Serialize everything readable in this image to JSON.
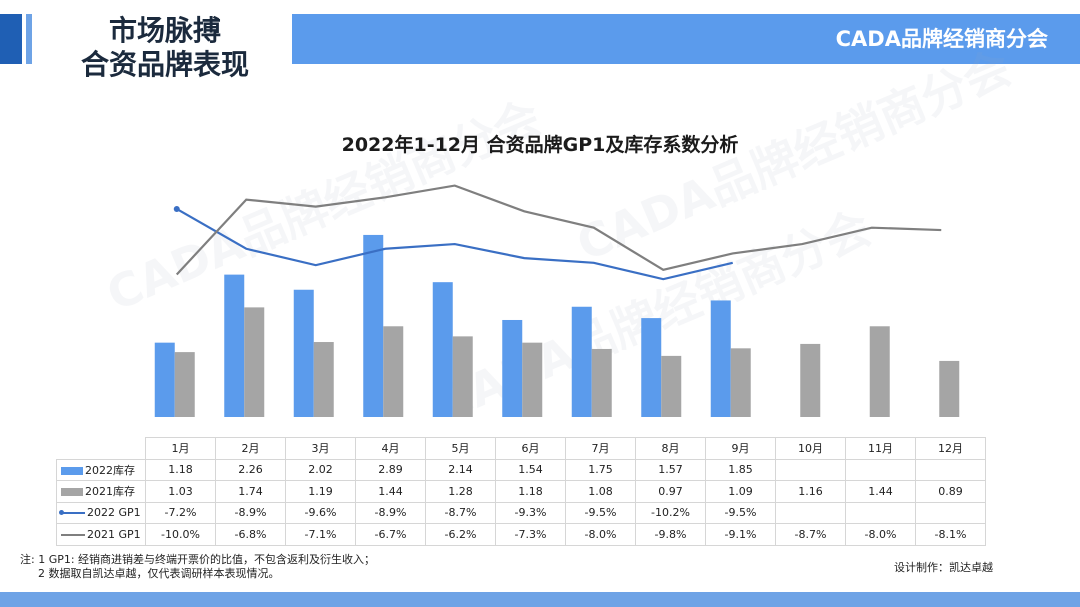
{
  "header": {
    "title_line1": "市场脉搏",
    "title_line2": "合资品牌表现",
    "brand": "CADA品牌经销商分会"
  },
  "watermark": "CADA品牌经销商分会",
  "chart_data": {
    "type": "bar",
    "title": "2022年1-12月 合资品牌GP1及库存系数分析",
    "categories": [
      "1月",
      "2月",
      "3月",
      "4月",
      "5月",
      "6月",
      "7月",
      "8月",
      "9月",
      "10月",
      "11月",
      "12月"
    ],
    "series": [
      {
        "name": "2022库存",
        "kind": "bar",
        "color": "#5b9bec",
        "values": [
          1.18,
          2.26,
          2.02,
          2.89,
          2.14,
          1.54,
          1.75,
          1.57,
          1.85,
          null,
          null,
          null
        ],
        "labels": [
          "1.18",
          "2.26",
          "2.02",
          "2.89",
          "2.14",
          "1.54",
          "1.75",
          "1.57",
          "1.85",
          "",
          "",
          ""
        ]
      },
      {
        "name": "2021库存",
        "kind": "bar",
        "color": "#a5a5a5",
        "values": [
          1.03,
          1.74,
          1.19,
          1.44,
          1.28,
          1.18,
          1.08,
          0.97,
          1.09,
          1.16,
          1.44,
          0.89
        ],
        "labels": [
          "1.03",
          "1.74",
          "1.19",
          "1.44",
          "1.28",
          "1.18",
          "1.08",
          "0.97",
          "1.09",
          "1.16",
          "1.44",
          "0.89"
        ]
      },
      {
        "name": "2022 GP1",
        "kind": "line",
        "color": "#3a6fc4",
        "values": [
          -7.2,
          -8.9,
          -9.6,
          -8.9,
          -8.7,
          -9.3,
          -9.5,
          -10.2,
          -9.5,
          null,
          null,
          null
        ],
        "labels": [
          "-7.2%",
          "-8.9%",
          "-9.6%",
          "-8.9%",
          "-8.7%",
          "-9.3%",
          "-9.5%",
          "-10.2%",
          "-9.5%",
          "",
          "",
          ""
        ]
      },
      {
        "name": "2021 GP1",
        "kind": "line",
        "color": "#7f7f7f",
        "values": [
          -10.0,
          -6.8,
          -7.1,
          -6.7,
          -6.2,
          -7.3,
          -8.0,
          -9.8,
          -9.1,
          -8.7,
          -8.0,
          -8.1
        ],
        "labels": [
          "-10.0%",
          "-6.8%",
          "-7.1%",
          "-6.7%",
          "-6.2%",
          "-7.3%",
          "-8.0%",
          "-9.8%",
          "-9.1%",
          "-8.7%",
          "-8.0%",
          "-8.1%"
        ]
      }
    ]
  },
  "notes": {
    "line1": "注: 1 GP1: 经销商进销差与终端开票价的比值，不包含返利及衍生收入；",
    "line2": "2 数据取自凯达卓越，仅代表调研样本表现情况。",
    "credit": "设计制作：凯达卓越"
  }
}
